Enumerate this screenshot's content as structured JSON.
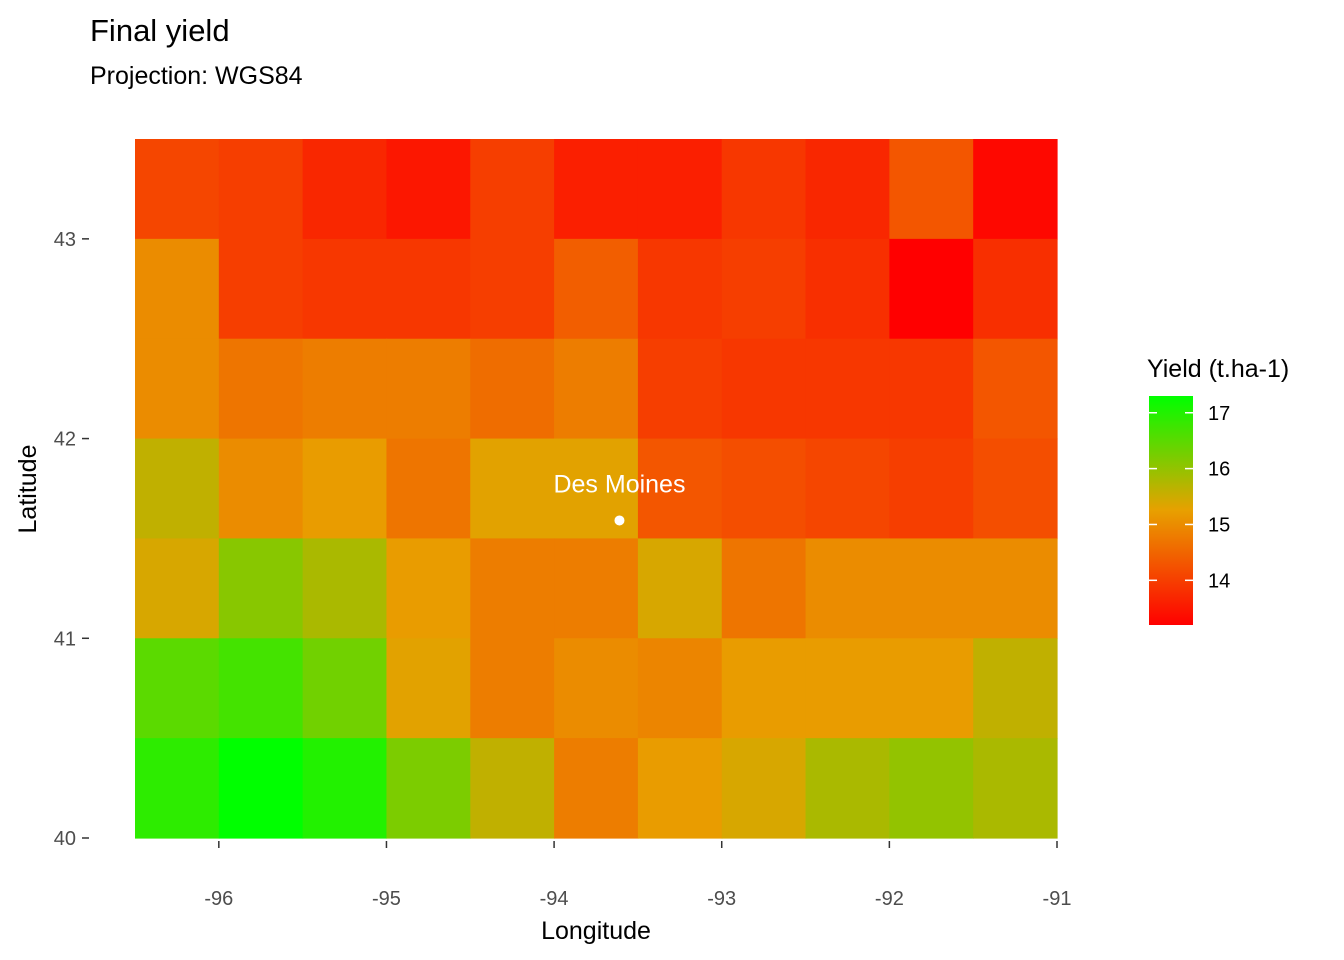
{
  "chart_data": {
    "type": "heatmap",
    "title": "Final yield",
    "subtitle": "Projection: WGS84",
    "xlabel": "Longitude",
    "ylabel": "Latitude",
    "xlim": [
      -96.5,
      -91
    ],
    "ylim": [
      40,
      43.5
    ],
    "x_ticks": [
      -96,
      -95,
      -94,
      -93,
      -92,
      -91
    ],
    "x_tick_labels": [
      "-96",
      "-95",
      "-94",
      "-93",
      "-92",
      "-91"
    ],
    "y_ticks": [
      40,
      41,
      42,
      43
    ],
    "y_tick_labels": [
      "40",
      "41",
      "42",
      "43"
    ],
    "grid": false,
    "cell_size": [
      0.5,
      0.5
    ],
    "x_centers": [
      -96.25,
      -95.75,
      -95.25,
      -94.75,
      -94.25,
      -93.75,
      -93.25,
      -92.75,
      -92.25,
      -91.75,
      -91.25
    ],
    "y_centers": [
      43.25,
      42.75,
      42.25,
      41.75,
      41.25,
      40.75,
      40.25
    ],
    "values": [
      [
        14.1,
        14.0,
        13.7,
        13.5,
        14.0,
        13.6,
        13.6,
        13.9,
        13.7,
        14.3,
        13.3
      ],
      [
        15.0,
        14.0,
        13.9,
        13.9,
        14.0,
        14.4,
        13.9,
        14.0,
        13.8,
        13.2,
        13.8
      ],
      [
        15.0,
        14.7,
        14.8,
        14.8,
        14.6,
        14.8,
        14.0,
        13.9,
        13.9,
        13.9,
        14.3
      ],
      [
        15.6,
        15.0,
        15.2,
        14.7,
        15.3,
        15.3,
        14.3,
        14.2,
        14.1,
        14.0,
        14.2
      ],
      [
        15.4,
        16.1,
        15.8,
        15.2,
        14.8,
        14.8,
        15.4,
        14.7,
        15.0,
        15.0,
        15.0
      ],
      [
        16.5,
        16.7,
        16.3,
        15.3,
        14.8,
        15.0,
        14.9,
        15.2,
        15.2,
        15.2,
        15.6
      ],
      [
        16.9,
        17.3,
        17.0,
        16.2,
        15.6,
        14.8,
        15.2,
        15.4,
        15.8,
        16.0,
        15.8
      ]
    ],
    "color_scale": {
      "low_color": "#ff0000",
      "mid_color": "#e8a000",
      "high_color": "#00ff00",
      "min": 13.2,
      "max": 17.3
    },
    "legend": {
      "title": "Yield (t.ha-1)",
      "placement": "right",
      "breaks": [
        14,
        15,
        16,
        17
      ],
      "break_labels": [
        "14",
        "15",
        "16",
        "17"
      ]
    },
    "annotations": [
      {
        "label": "Des Moines",
        "x": -93.61,
        "y": 41.59,
        "marker_color": "#ffffff"
      }
    ]
  }
}
